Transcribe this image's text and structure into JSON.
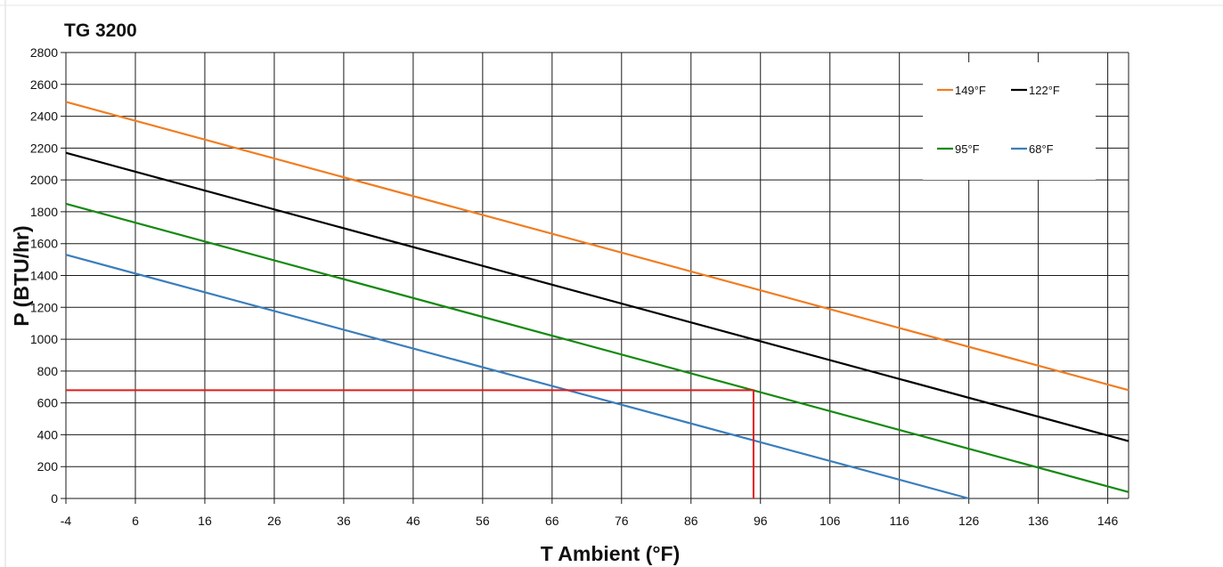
{
  "chart_data": {
    "type": "line",
    "title": "TG 3200",
    "xlabel": "T Ambient (°F)",
    "ylabel": "P (BTU/hr)",
    "xlim": [
      -4,
      149
    ],
    "ylim": [
      0,
      2800
    ],
    "x_ticks": [
      -4,
      6,
      16,
      26,
      36,
      46,
      56,
      66,
      76,
      86,
      96,
      106,
      116,
      126,
      136,
      146
    ],
    "x_tick_labels": [
      "-4",
      "6",
      "16",
      "26",
      "36",
      "46",
      "56",
      "66",
      "76",
      "86",
      "96",
      "106",
      "116",
      "126",
      "136",
      "146"
    ],
    "y_ticks": [
      0,
      200,
      400,
      600,
      800,
      1000,
      1200,
      1400,
      1600,
      1800,
      2000,
      2200,
      2400,
      2600,
      2800
    ],
    "y_tick_labels": [
      "0",
      "200",
      "400",
      "600",
      "800",
      "1000",
      "1200",
      "1400",
      "1600",
      "1800",
      "2000",
      "2200",
      "2400",
      "2600",
      "2800"
    ],
    "grid": true,
    "legend_position": "top-right",
    "series": [
      {
        "name": "149°F",
        "color": "#f07d22",
        "x": [
          -4,
          149
        ],
        "y": [
          2490,
          680
        ]
      },
      {
        "name": "122°F",
        "color": "#000000",
        "x": [
          -4,
          149
        ],
        "y": [
          2170,
          360
        ]
      },
      {
        "name": "95°F",
        "color": "#138a0f",
        "x": [
          -4,
          149
        ],
        "y": [
          1850,
          40
        ]
      },
      {
        "name": "68°F",
        "color": "#3a7ebd",
        "x": [
          -4,
          126
        ],
        "y": [
          1530,
          0
        ]
      }
    ],
    "guide_line": {
      "color": "#e21b1b",
      "x": [
        -4,
        95,
        95
      ],
      "y": [
        680,
        680,
        0
      ]
    }
  }
}
